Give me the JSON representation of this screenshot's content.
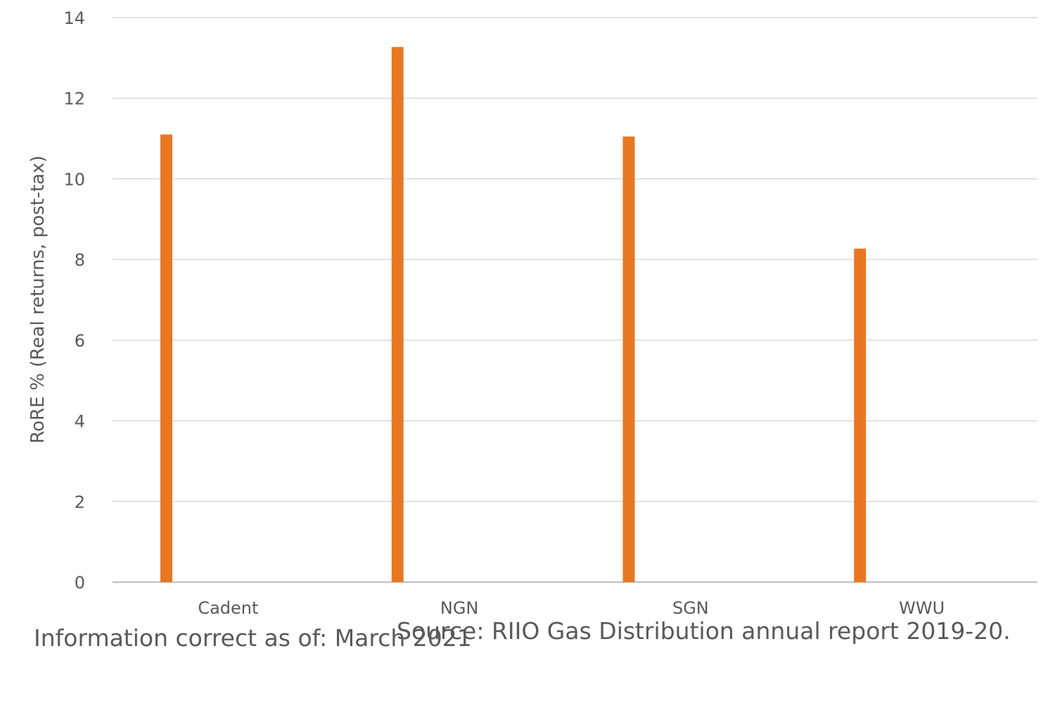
{
  "chart_data": {
    "type": "bar",
    "categories": [
      "Cadent",
      "NGN",
      "SGN",
      "WWU"
    ],
    "values": [
      11.1,
      13.27,
      11.05,
      8.27
    ],
    "title": "",
    "xlabel": "",
    "ylabel": "RoRE % (Real returns, post-tax)",
    "ylim": [
      0,
      14
    ],
    "yticks": [
      "0",
      "2",
      "4",
      "6",
      "8",
      "10",
      "12",
      "14"
    ],
    "grid": true,
    "bar_color": "#E87722",
    "grid_color": "#D9D9D9"
  },
  "footer": {
    "source": "Source: RIIO Gas Distribution annual report 2019-20.",
    "info": "Information correct as of: March 2021"
  }
}
